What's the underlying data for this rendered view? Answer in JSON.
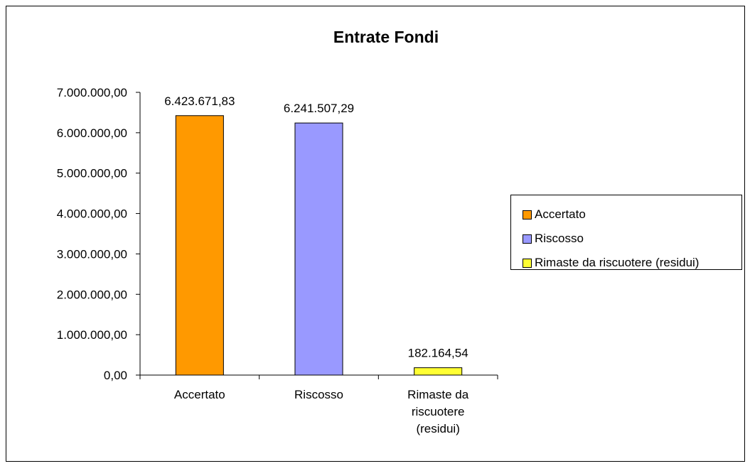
{
  "chart_data": {
    "type": "bar",
    "title": "Entrate Fondi",
    "xlabel": "",
    "ylabel": "",
    "categories": [
      "Accertato",
      "Riscosso",
      "Rimaste da riscuotere (residui)"
    ],
    "category_label_lines": [
      [
        "Accertato"
      ],
      [
        "Riscosso"
      ],
      [
        "Rimaste da",
        "riscuotere",
        "(residui)"
      ]
    ],
    "values": [
      6423671.83,
      6241507.29,
      182164.54
    ],
    "data_labels": [
      "6.423.671,83",
      "6.241.507,29",
      "182.164,54"
    ],
    "colors": [
      "#FF9900",
      "#9999FF",
      "#FFFF33"
    ],
    "ylim": [
      0,
      7000000
    ],
    "yticks": [
      0,
      1000000,
      2000000,
      3000000,
      4000000,
      5000000,
      6000000,
      7000000
    ],
    "ytick_labels": [
      "0,00",
      "1.000.000,00",
      "2.000.000,00",
      "3.000.000,00",
      "4.000.000,00",
      "5.000.000,00",
      "6.000.000,00",
      "7.000.000,00"
    ],
    "grid": false,
    "legend": {
      "placement": "right",
      "entries": [
        "Accertato",
        "Riscosso",
        "Rimaste da riscuotere (residui)"
      ]
    }
  }
}
